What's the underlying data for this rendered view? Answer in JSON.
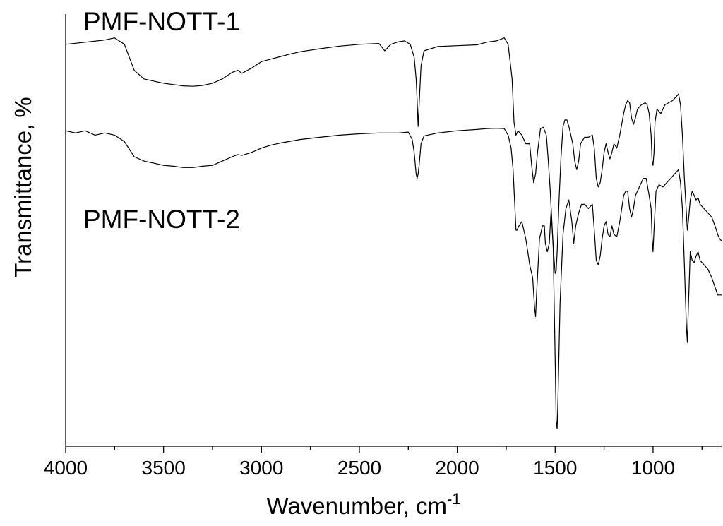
{
  "chart_data": {
    "type": "line",
    "title": "",
    "xlabel": "Wavenumber, cm",
    "xlabel_superscript": "-1",
    "ylabel": "Transmittance, %",
    "xlim": [
      4000,
      650
    ],
    "x_reversed": true,
    "ylim": [
      0,
      100
    ],
    "y_ticks_shown": false,
    "grid": false,
    "legend": "none",
    "x_ticks": [
      {
        "value": 4000,
        "label": "4000"
      },
      {
        "value": 3500,
        "label": "3500"
      },
      {
        "value": 3000,
        "label": "3000"
      },
      {
        "value": 2500,
        "label": "2500"
      },
      {
        "value": 2000,
        "label": "2000"
      },
      {
        "value": 1500,
        "label": "1500"
      },
      {
        "value": 1000,
        "label": "1000"
      }
    ],
    "x_minor_ticks": [
      3750,
      3250,
      2750,
      2250,
      1750,
      1250,
      750
    ],
    "series": [
      {
        "name": "PMF-NOTT-1",
        "label_position": "top-left",
        "points": [
          [
            4000,
            93
          ],
          [
            3900,
            93.5
          ],
          [
            3800,
            94
          ],
          [
            3750,
            94.5
          ],
          [
            3700,
            93
          ],
          [
            3650,
            87
          ],
          [
            3600,
            85
          ],
          [
            3550,
            84.5
          ],
          [
            3500,
            84
          ],
          [
            3450,
            83.7
          ],
          [
            3400,
            83.4
          ],
          [
            3350,
            83.3
          ],
          [
            3300,
            83.5
          ],
          [
            3250,
            84
          ],
          [
            3200,
            85
          ],
          [
            3150,
            86.5
          ],
          [
            3120,
            87
          ],
          [
            3100,
            86.3
          ],
          [
            3050,
            87.5
          ],
          [
            3000,
            89
          ],
          [
            2950,
            89.6
          ],
          [
            2900,
            90.2
          ],
          [
            2850,
            90.8
          ],
          [
            2800,
            91.3
          ],
          [
            2700,
            92
          ],
          [
            2600,
            92.6
          ],
          [
            2500,
            93
          ],
          [
            2400,
            93.2
          ],
          [
            2370,
            91.5
          ],
          [
            2340,
            93
          ],
          [
            2300,
            93.6
          ],
          [
            2270,
            93.8
          ],
          [
            2240,
            93
          ],
          [
            2220,
            90
          ],
          [
            2210,
            85
          ],
          [
            2205,
            80
          ],
          [
            2200,
            74
          ],
          [
            2195,
            79
          ],
          [
            2185,
            88
          ],
          [
            2170,
            91.5
          ],
          [
            2100,
            92.5
          ],
          [
            2000,
            92.7
          ],
          [
            1900,
            92.9
          ],
          [
            1850,
            93.5
          ],
          [
            1800,
            93.8
          ],
          [
            1760,
            94.5
          ],
          [
            1740,
            93
          ],
          [
            1720,
            85
          ],
          [
            1710,
            75
          ],
          [
            1700,
            72
          ],
          [
            1690,
            73
          ],
          [
            1670,
            72
          ],
          [
            1650,
            70
          ],
          [
            1630,
            70
          ],
          [
            1620,
            65
          ],
          [
            1610,
            61
          ],
          [
            1600,
            63
          ],
          [
            1590,
            68
          ],
          [
            1575,
            73.5
          ],
          [
            1560,
            73.8
          ],
          [
            1545,
            72
          ],
          [
            1535,
            66
          ],
          [
            1525,
            59
          ],
          [
            1515,
            50
          ],
          [
            1505,
            43
          ],
          [
            1500,
            40
          ],
          [
            1495,
            40.5
          ],
          [
            1490,
            45
          ],
          [
            1480,
            57
          ],
          [
            1470,
            67
          ],
          [
            1460,
            74
          ],
          [
            1450,
            75.5
          ],
          [
            1440,
            75.5
          ],
          [
            1430,
            74
          ],
          [
            1420,
            72
          ],
          [
            1410,
            70
          ],
          [
            1400,
            66
          ],
          [
            1390,
            64
          ],
          [
            1380,
            66
          ],
          [
            1370,
            70
          ],
          [
            1350,
            71.5
          ],
          [
            1330,
            71.5
          ],
          [
            1310,
            72
          ],
          [
            1300,
            69
          ],
          [
            1290,
            62
          ],
          [
            1280,
            60
          ],
          [
            1270,
            61
          ],
          [
            1260,
            64
          ],
          [
            1250,
            68
          ],
          [
            1240,
            70
          ],
          [
            1230,
            68
          ],
          [
            1220,
            66.5
          ],
          [
            1210,
            68
          ],
          [
            1200,
            70
          ],
          [
            1185,
            69
          ],
          [
            1170,
            72
          ],
          [
            1150,
            77
          ],
          [
            1140,
            79
          ],
          [
            1130,
            80
          ],
          [
            1120,
            79.5
          ],
          [
            1110,
            76
          ],
          [
            1100,
            74.5
          ],
          [
            1090,
            76
          ],
          [
            1080,
            78
          ],
          [
            1060,
            79
          ],
          [
            1040,
            79.5
          ],
          [
            1030,
            79
          ],
          [
            1020,
            77
          ],
          [
            1010,
            72
          ],
          [
            1005,
            66
          ],
          [
            1000,
            65
          ],
          [
            995,
            68
          ],
          [
            990,
            75
          ],
          [
            980,
            78
          ],
          [
            960,
            77
          ],
          [
            940,
            79
          ],
          [
            920,
            79.5
          ],
          [
            900,
            80
          ],
          [
            880,
            81
          ],
          [
            870,
            81.5
          ],
          [
            860,
            79
          ],
          [
            850,
            72
          ],
          [
            840,
            62
          ],
          [
            830,
            54
          ],
          [
            825,
            50
          ],
          [
            820,
            52
          ],
          [
            810,
            57
          ],
          [
            800,
            59
          ],
          [
            790,
            58
          ],
          [
            780,
            57
          ],
          [
            770,
            57.5
          ],
          [
            760,
            56
          ],
          [
            740,
            55
          ],
          [
            720,
            54
          ],
          [
            700,
            53
          ],
          [
            680,
            50.5
          ],
          [
            670,
            49
          ],
          [
            660,
            48
          ],
          [
            650,
            47.5
          ]
        ]
      },
      {
        "name": "PMF-NOTT-2",
        "label_position": "center-left",
        "points": [
          [
            4000,
            73
          ],
          [
            3950,
            72.5
          ],
          [
            3900,
            73
          ],
          [
            3850,
            72
          ],
          [
            3800,
            72.5
          ],
          [
            3750,
            72
          ],
          [
            3700,
            70.5
          ],
          [
            3650,
            67
          ],
          [
            3600,
            66
          ],
          [
            3550,
            65.5
          ],
          [
            3500,
            65
          ],
          [
            3450,
            64.8
          ],
          [
            3400,
            64.5
          ],
          [
            3350,
            64.5
          ],
          [
            3300,
            64.8
          ],
          [
            3250,
            65
          ],
          [
            3200,
            66
          ],
          [
            3150,
            67
          ],
          [
            3120,
            67.5
          ],
          [
            3100,
            67.3
          ],
          [
            3050,
            68
          ],
          [
            3000,
            69
          ],
          [
            2950,
            69.7
          ],
          [
            2900,
            70.2
          ],
          [
            2800,
            71
          ],
          [
            2700,
            71.5
          ],
          [
            2600,
            72
          ],
          [
            2500,
            72.3
          ],
          [
            2400,
            72.5
          ],
          [
            2300,
            72.5
          ],
          [
            2250,
            72.7
          ],
          [
            2230,
            71
          ],
          [
            2220,
            68
          ],
          [
            2210,
            63
          ],
          [
            2205,
            62
          ],
          [
            2200,
            63
          ],
          [
            2195,
            65
          ],
          [
            2185,
            70
          ],
          [
            2170,
            71.8
          ],
          [
            2100,
            72.5
          ],
          [
            2000,
            73
          ],
          [
            1900,
            73.3
          ],
          [
            1850,
            73.5
          ],
          [
            1800,
            73.6
          ],
          [
            1760,
            73.5
          ],
          [
            1740,
            72
          ],
          [
            1725,
            69
          ],
          [
            1715,
            64
          ],
          [
            1700,
            50
          ],
          [
            1695,
            50
          ],
          [
            1685,
            51
          ],
          [
            1670,
            52
          ],
          [
            1660,
            50
          ],
          [
            1650,
            48
          ],
          [
            1640,
            45
          ],
          [
            1630,
            42
          ],
          [
            1615,
            39
          ],
          [
            1605,
            32
          ],
          [
            1600,
            30
          ],
          [
            1595,
            35
          ],
          [
            1580,
            48
          ],
          [
            1565,
            51
          ],
          [
            1555,
            51
          ],
          [
            1550,
            47
          ],
          [
            1540,
            45
          ],
          [
            1530,
            47
          ],
          [
            1520,
            55
          ],
          [
            1510,
            46
          ],
          [
            1500,
            20
          ],
          [
            1495,
            6
          ],
          [
            1490,
            4
          ],
          [
            1485,
            12
          ],
          [
            1475,
            33
          ],
          [
            1460,
            49
          ],
          [
            1445,
            55
          ],
          [
            1430,
            57
          ],
          [
            1415,
            52
          ],
          [
            1405,
            47
          ],
          [
            1395,
            51
          ],
          [
            1380,
            54
          ],
          [
            1365,
            56
          ],
          [
            1350,
            56
          ],
          [
            1330,
            55
          ],
          [
            1310,
            56
          ],
          [
            1300,
            50
          ],
          [
            1290,
            43
          ],
          [
            1280,
            42
          ],
          [
            1270,
            44
          ],
          [
            1260,
            48
          ],
          [
            1250,
            51
          ],
          [
            1240,
            52
          ],
          [
            1230,
            49
          ],
          [
            1220,
            48.5
          ],
          [
            1210,
            51
          ],
          [
            1200,
            49
          ],
          [
            1185,
            48.5
          ],
          [
            1170,
            52
          ],
          [
            1150,
            58
          ],
          [
            1140,
            59
          ],
          [
            1130,
            59
          ],
          [
            1120,
            55
          ],
          [
            1110,
            53
          ],
          [
            1100,
            55
          ],
          [
            1090,
            58
          ],
          [
            1070,
            60
          ],
          [
            1050,
            62
          ],
          [
            1035,
            62
          ],
          [
            1020,
            58
          ],
          [
            1010,
            55
          ],
          [
            1005,
            48
          ],
          [
            1000,
            45
          ],
          [
            995,
            50
          ],
          [
            985,
            59
          ],
          [
            970,
            60.5
          ],
          [
            950,
            60
          ],
          [
            930,
            61
          ],
          [
            910,
            62
          ],
          [
            890,
            63
          ],
          [
            870,
            64
          ],
          [
            860,
            61
          ],
          [
            850,
            55
          ],
          [
            840,
            42
          ],
          [
            830,
            28
          ],
          [
            825,
            24
          ],
          [
            820,
            32
          ],
          [
            810,
            45
          ],
          [
            800,
            43
          ],
          [
            790,
            42.5
          ],
          [
            780,
            44
          ],
          [
            770,
            45
          ],
          [
            760,
            43
          ],
          [
            740,
            42
          ],
          [
            720,
            41
          ],
          [
            700,
            39
          ],
          [
            685,
            37
          ],
          [
            670,
            35
          ],
          [
            660,
            35
          ],
          [
            650,
            35
          ]
        ]
      }
    ]
  }
}
